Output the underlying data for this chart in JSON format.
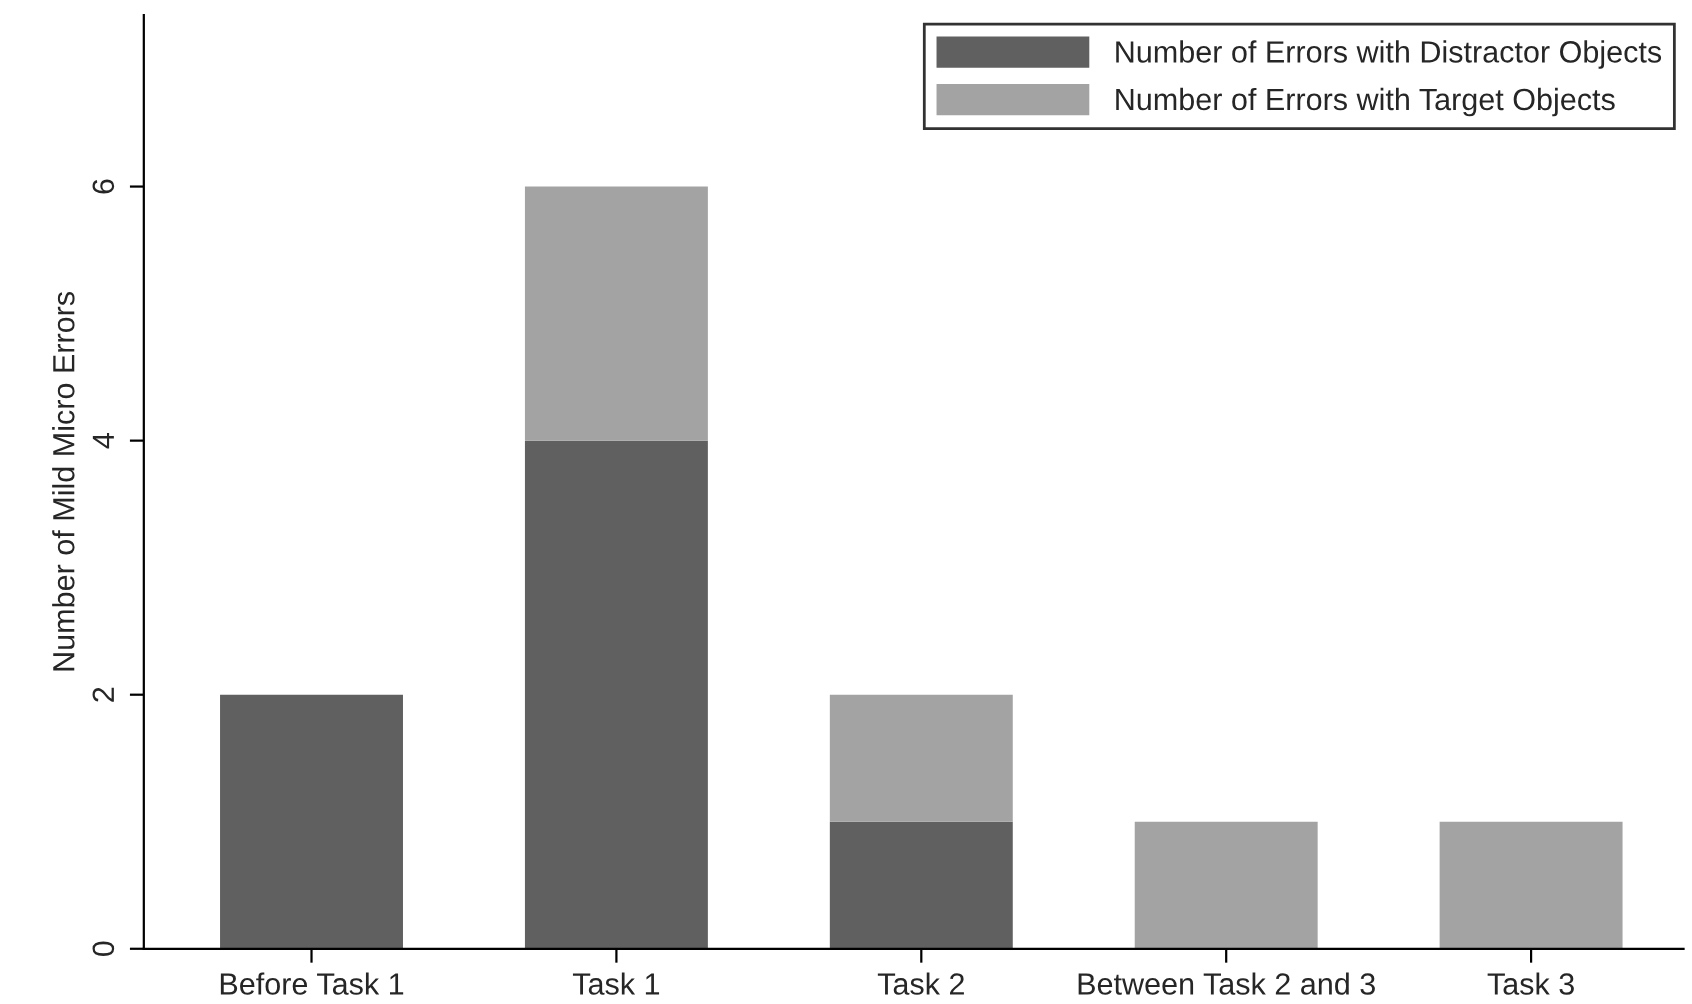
{
  "chart_data": {
    "type": "bar",
    "stacked": true,
    "ylabel": "Number of Mild Micro Errors",
    "categories": [
      "Before Task 1",
      "Task 1",
      "Task 2",
      "Between Task 2 and 3",
      "Task 3"
    ],
    "series": [
      {
        "name": "Number of Errors with Distractor Objects",
        "color": "#606060",
        "values": [
          2,
          4,
          1,
          0,
          0
        ]
      },
      {
        "name": "Number of Errors with Target Objects",
        "color": "#a3a3a3",
        "values": [
          0,
          2,
          1,
          1,
          1
        ]
      }
    ],
    "ylim": [
      0,
      7.35
    ],
    "yticks": [
      0,
      2,
      4,
      6
    ],
    "grid": false,
    "legend": "top right"
  }
}
